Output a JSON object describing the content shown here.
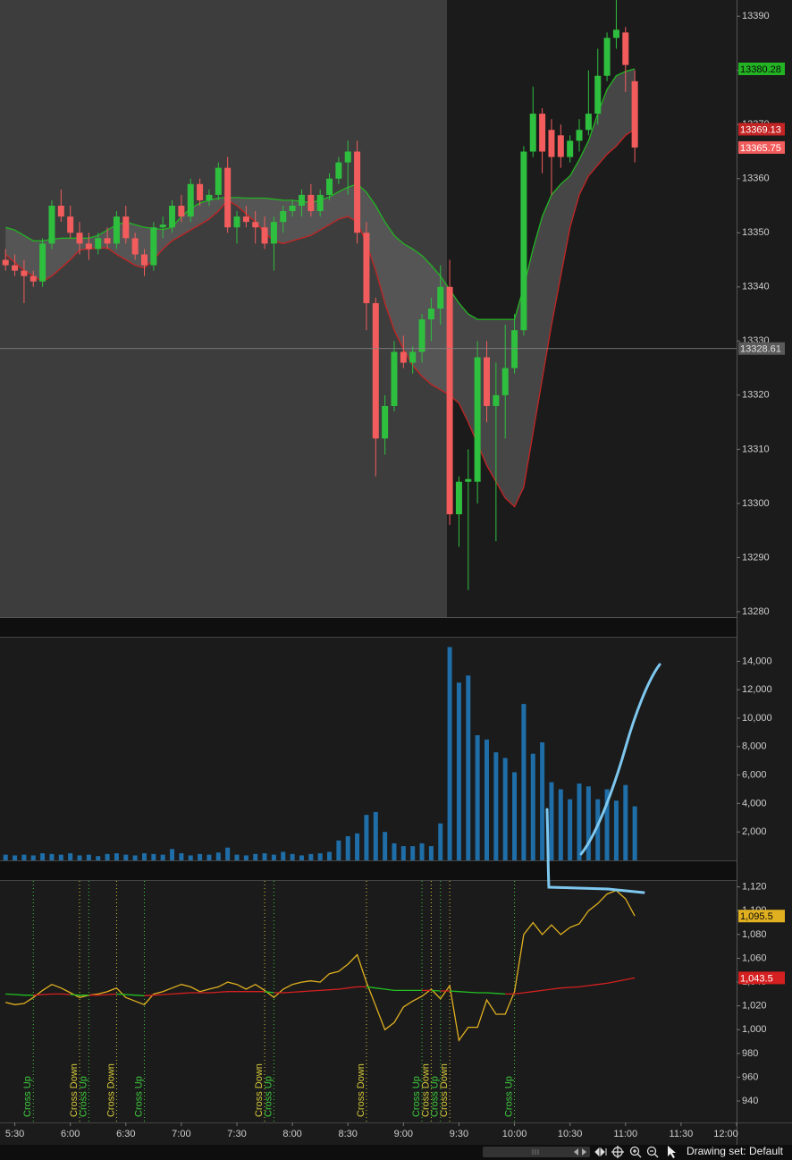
{
  "chart_data": [
    {
      "type": "candlestick",
      "x": [
        325,
        330,
        335,
        340,
        345,
        350,
        355,
        360,
        365,
        370,
        375,
        380,
        385,
        390,
        395,
        400,
        405,
        410,
        415,
        420,
        425,
        430,
        435,
        440,
        445,
        450,
        455,
        460,
        465,
        470,
        475,
        480,
        485,
        490,
        495,
        500,
        505,
        510,
        515,
        520,
        525,
        530,
        535,
        540,
        545,
        550,
        555,
        560,
        565,
        570,
        575,
        580,
        585,
        590,
        595,
        600,
        605,
        610,
        615,
        620,
        625,
        630,
        635,
        640,
        645,
        650,
        655,
        660,
        665
      ],
      "xlim": [
        322,
        720
      ],
      "open": [
        13345,
        13344,
        13343,
        13342,
        13341,
        13348,
        13355,
        13353,
        13350,
        13348,
        13347,
        13349,
        13348,
        13353,
        13349,
        13346,
        13344,
        13351,
        13351,
        13355,
        13353,
        13359,
        13356,
        13357,
        13362,
        13351,
        13353,
        13352,
        13351,
        13348,
        13352,
        13354,
        13355,
        13357,
        13354,
        13357,
        13360,
        13363,
        13365,
        13350,
        13337,
        13312,
        13318,
        13328,
        13326,
        13328,
        13334,
        13336,
        13340,
        13298,
        13304,
        13304,
        13327,
        13318,
        13320,
        13325,
        13332,
        13365,
        13372,
        13369,
        13368,
        13364,
        13367,
        13369,
        13372,
        13379,
        13386,
        13387,
        13378
      ],
      "high": [
        13347,
        13346,
        13345,
        13343,
        13349,
        13356,
        13358,
        13355,
        13352,
        13350,
        13350,
        13351,
        13354,
        13355,
        13350,
        13347,
        13352,
        13353,
        13356,
        13357,
        13360,
        13360,
        13358,
        13363,
        13364,
        13354,
        13355,
        13354,
        13353,
        13353,
        13355,
        13356,
        13358,
        13359,
        13358,
        13361,
        13364,
        13367,
        13367,
        13352,
        13338,
        13320,
        13330,
        13331,
        13329,
        13335,
        13338,
        13344,
        13345,
        13305,
        13310,
        13330,
        13330,
        13326,
        13333,
        13335,
        13366,
        13377,
        13373,
        13371,
        13370,
        13368,
        13371,
        13380,
        13384,
        13387,
        13393,
        13388,
        13380
      ],
      "low": [
        13343,
        13342,
        13337,
        13340,
        13340,
        13347,
        13352,
        13349,
        13346,
        13345,
        13346,
        13347,
        13347,
        13348,
        13345,
        13342,
        13343,
        13349,
        13350,
        13352,
        13352,
        13355,
        13355,
        13356,
        13350,
        13348,
        13351,
        13348,
        13347,
        13343,
        13350,
        13353,
        13353,
        13353,
        13353,
        13356,
        13359,
        13357,
        13348,
        13332,
        13305,
        13309,
        13317,
        13325,
        13324,
        13326,
        13330,
        13333,
        13296,
        13292,
        13284,
        13300,
        13315,
        13293,
        13312,
        13324,
        13331,
        13364,
        13361,
        13357,
        13362,
        13363,
        13365,
        13368,
        13370,
        13378,
        13384,
        13376,
        13363
      ],
      "close": [
        13344,
        13343,
        13342,
        13341,
        13348,
        13355,
        13353,
        13350,
        13348,
        13347,
        13349,
        13348,
        13353,
        13349,
        13346,
        13344,
        13351,
        13351.5,
        13355,
        13353,
        13359,
        13356,
        13357,
        13362,
        13351,
        13353,
        13352,
        13351,
        13348,
        13352,
        13354,
        13355,
        13357,
        13354,
        13357,
        13360,
        13363,
        13365,
        13350,
        13337,
        13312,
        13318,
        13328,
        13326,
        13328,
        13334,
        13336,
        13340,
        13298,
        13304,
        13304.5,
        13327,
        13318,
        13320,
        13325,
        13332,
        13365,
        13372,
        13365,
        13364,
        13364,
        13367,
        13369,
        13372,
        13379,
        13386,
        13387.5,
        13381,
        13365.75
      ],
      "up_color": "#2fbf3f",
      "down_color": "#f25c5c",
      "upper_band": {
        "color": "#22b422",
        "values": [
          13351,
          13350.5,
          13349.5,
          13348.5,
          13348.5,
          13348.8,
          13349,
          13349,
          13349,
          13349,
          13349.5,
          13350.5,
          13351.5,
          13352,
          13351.5,
          13351,
          13350.8,
          13350.6,
          13351,
          13353,
          13354.5,
          13355.5,
          13356,
          13356.4,
          13356.5,
          13356.5,
          13356.4,
          13356.4,
          13356.4,
          13356.2,
          13356,
          13356,
          13355.8,
          13355.6,
          13356,
          13356.6,
          13357.6,
          13358.4,
          13359,
          13357.5,
          13355,
          13352,
          13349.5,
          13348,
          13347,
          13345.8,
          13344,
          13342,
          13339.5,
          13337,
          13335,
          13334,
          13334,
          13334,
          13334,
          13334,
          13340,
          13347,
          13353,
          13357,
          13359,
          13360.5,
          13363.5,
          13367,
          13372,
          13376.5,
          13379,
          13379.8,
          13380.28
        ]
      },
      "lower_band": {
        "color": "#c42424",
        "values": [
          13346,
          13344.5,
          13343,
          13342,
          13341,
          13342,
          13343.5,
          13345,
          13346.8,
          13347,
          13347.2,
          13347.2,
          13346,
          13345,
          13344,
          13343.5,
          13345,
          13347,
          13348.5,
          13349.5,
          13350.5,
          13351.5,
          13352.5,
          13354,
          13356,
          13355,
          13353.5,
          13352,
          13350,
          13348.5,
          13348,
          13348.5,
          13349,
          13349.5,
          13350.5,
          13351.5,
          13352.5,
          13353,
          13352,
          13348,
          13343,
          13337,
          13332,
          13328.5,
          13325.5,
          13323.5,
          13322,
          13321,
          13320,
          13318.5,
          13315,
          13311,
          13307,
          13304,
          13301,
          13299.4,
          13303,
          13313,
          13323,
          13333,
          13342,
          13351,
          13357,
          13360.5,
          13362.5,
          13364.5,
          13366,
          13368,
          13369.13
        ]
      },
      "band_fill": "#6a6a6a",
      "crosshair": 13328.61,
      "ylim": [
        13279,
        13393
      ],
      "yticks": [
        13280,
        13290,
        13300,
        13310,
        13320,
        13330,
        13340,
        13350,
        13360,
        13370,
        13380,
        13390
      ]
    },
    {
      "type": "bar",
      "values": [
        400,
        350,
        400,
        350,
        500,
        450,
        400,
        500,
        350,
        400,
        300,
        450,
        500,
        400,
        350,
        500,
        450,
        400,
        800,
        500,
        350,
        450,
        400,
        550,
        900,
        400,
        350,
        450,
        500,
        400,
        600,
        450,
        350,
        450,
        500,
        600,
        1400,
        1700,
        1900,
        3200,
        3400,
        2000,
        1200,
        1000,
        1000,
        1200,
        1000,
        2600,
        15000,
        12500,
        13000,
        8800,
        8500,
        7600,
        7200,
        6200,
        11000,
        7500,
        8300,
        5500,
        5000,
        4300,
        5400,
        5200,
        4300,
        5000,
        4200,
        5300,
        3800
      ],
      "color": "#1f6ea8",
      "ylim": [
        0,
        15660
      ],
      "yticks": [
        {
          "value": 2000,
          "label": "2,000"
        },
        {
          "value": 4000,
          "label": "4,000"
        },
        {
          "value": 6000,
          "label": "6,000"
        },
        {
          "value": 8000,
          "label": "8,000"
        },
        {
          "value": 10000,
          "label": "10,000"
        },
        {
          "value": 12000,
          "label": "12,000"
        },
        {
          "value": 14000,
          "label": "14,000"
        }
      ]
    },
    {
      "type": "line",
      "series": [
        {
          "color": "#e0b020",
          "last_label": "1,095.5",
          "values": [
            1023,
            1021,
            1022,
            1027,
            1033,
            1038,
            1035,
            1031,
            1027,
            1029,
            1030,
            1032,
            1035,
            1027,
            1024,
            1021,
            1030,
            1032,
            1035,
            1038,
            1036,
            1032,
            1034,
            1036,
            1040,
            1038,
            1034,
            1038,
            1033,
            1027,
            1034,
            1038,
            1040,
            1041,
            1040,
            1047,
            1049,
            1055,
            1063,
            1040,
            1020,
            1000,
            1006,
            1019,
            1024,
            1028,
            1034,
            1026,
            1037,
            991,
            1002,
            1002,
            1025,
            1013,
            1013,
            1032,
            1080,
            1090,
            1080,
            1088,
            1080,
            1086,
            1089,
            1100,
            1106,
            1114,
            1117,
            1110,
            1095.5
          ]
        },
        {
          "color_above": "#d42020",
          "color_below": "#22c022",
          "last_label": "1,043.5",
          "values": [
            1030,
            1029.5,
            1029,
            1029,
            1029.5,
            1030,
            1030,
            1029.5,
            1029,
            1029,
            1029,
            1029.5,
            1030,
            1029.5,
            1029,
            1028.5,
            1029,
            1029.5,
            1030,
            1030.5,
            1031,
            1031,
            1031,
            1031.5,
            1032,
            1032,
            1032,
            1032,
            1032,
            1031,
            1031,
            1031.5,
            1032,
            1032.5,
            1033,
            1033.5,
            1034,
            1035,
            1036,
            1036,
            1035,
            1034,
            1033,
            1033,
            1033,
            1033,
            1033,
            1032.5,
            1032.5,
            1032,
            1031.5,
            1031,
            1031,
            1030.5,
            1030,
            1030,
            1031,
            1032,
            1033,
            1034,
            1035,
            1035.5,
            1036,
            1037,
            1038,
            1039,
            1040.5,
            1042,
            1043.5
          ]
        }
      ],
      "annotations": [
        {
          "text": "Cross Up",
          "x": 340,
          "color": "#3dcc3d"
        },
        {
          "text": "Cross Down",
          "x": 365,
          "color": "#d4c83a"
        },
        {
          "text": "Cross Up",
          "x": 370,
          "color": "#3dcc3d"
        },
        {
          "text": "Cross Down",
          "x": 385,
          "color": "#d4c83a"
        },
        {
          "text": "Cross Up",
          "x": 400,
          "color": "#3dcc3d"
        },
        {
          "text": "Cross Down",
          "x": 465,
          "color": "#d4c83a"
        },
        {
          "text": "Cross Up",
          "x": 470,
          "color": "#3dcc3d"
        },
        {
          "text": "Cross Down",
          "x": 520,
          "color": "#d4c83a"
        },
        {
          "text": "Cross Up",
          "x": 550,
          "color": "#3dcc3d"
        },
        {
          "text": "Cross Down",
          "x": 555,
          "color": "#d4c83a"
        },
        {
          "text": "Cross Up",
          "x": 560,
          "color": "#3dcc3d"
        },
        {
          "text": "Cross Down",
          "x": 565,
          "color": "#d4c83a"
        },
        {
          "text": "Cross Up",
          "x": 600,
          "color": "#3dcc3d"
        }
      ],
      "ylim": [
        922,
        1125
      ],
      "yticks": [
        940,
        960,
        980,
        {
          "value": 1000,
          "label": "1,000"
        },
        {
          "value": 1020,
          "label": "1,020"
        },
        {
          "value": 1040,
          "label": "1,040"
        },
        {
          "value": 1060,
          "label": "1,060"
        },
        {
          "value": 1080,
          "label": "1,080"
        },
        {
          "value": 1100,
          "label": "1,100"
        },
        {
          "value": 1120,
          "label": "1,120"
        }
      ],
      "xticks": [
        {
          "value": 330,
          "label": "5:30"
        },
        {
          "value": 360,
          "label": "6:00"
        },
        {
          "value": 390,
          "label": "6:30"
        },
        {
          "value": 420,
          "label": "7:00"
        },
        {
          "value": 450,
          "label": "7:30"
        },
        {
          "value": 480,
          "label": "8:00"
        },
        {
          "value": 510,
          "label": "8:30"
        },
        {
          "value": 540,
          "label": "9:00"
        },
        {
          "value": 570,
          "label": "9:30"
        },
        {
          "value": 600,
          "label": "10:00"
        },
        {
          "value": 630,
          "label": "10:30"
        },
        {
          "value": 660,
          "label": "11:00"
        },
        {
          "value": 690,
          "label": "11:30"
        },
        {
          "value": 720,
          "label": "12:00"
        }
      ]
    }
  ],
  "toolbar": {
    "drawing_set": "Drawing set: Default"
  }
}
